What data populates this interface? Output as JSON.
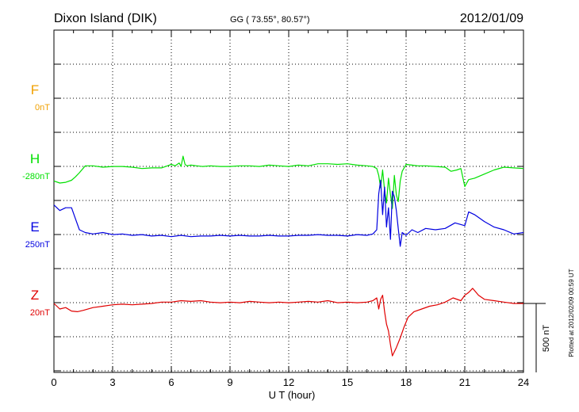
{
  "header": {
    "station": "Dixon Island (DIK)",
    "coords": "GG ( 73.55°,  80.57°)",
    "date": "2012/01/09"
  },
  "footer": {
    "xlabel": "U T (hour)",
    "plotted": "Plotted at 2012/02/09 00:59 UT",
    "scale_label": "500 nT"
  },
  "chart_data": {
    "type": "line",
    "title": "Dixon Island (DIK)",
    "xlabel": "U T (hour)",
    "ylabel": "",
    "xlim": [
      0,
      24
    ],
    "x_ticks": [
      "0",
      "3",
      "6",
      "9",
      "12",
      "15",
      "18",
      "21",
      "24"
    ],
    "grid": true,
    "scale_bar_nT": 500,
    "series": [
      {
        "name": "F",
        "baseline": "0nT",
        "color": "#f0a000",
        "x": [],
        "y": []
      },
      {
        "name": "H",
        "baseline": "-280nT",
        "color": "#00e000",
        "x": [
          0,
          0.3,
          0.6,
          0.9,
          1.1,
          1.3,
          1.6,
          2.0,
          2.5,
          3.0,
          3.5,
          4.0,
          4.5,
          5.0,
          5.5,
          5.8,
          6.0,
          6.2,
          6.4,
          6.5,
          6.6,
          6.7,
          6.8,
          7.0,
          7.3,
          7.6,
          8.0,
          8.5,
          9.0,
          9.5,
          10.0,
          10.5,
          11.0,
          11.5,
          12.0,
          12.5,
          13.0,
          13.5,
          14.0,
          14.5,
          15.0,
          15.5,
          16.0,
          16.3,
          16.5,
          16.6,
          16.7,
          16.8,
          16.9,
          17.0,
          17.1,
          17.2,
          17.3,
          17.4,
          17.5,
          17.6,
          17.7,
          17.8,
          18.0,
          18.3,
          18.6,
          19.0,
          19.5,
          20.0,
          20.3,
          20.6,
          20.8,
          21.0,
          21.2,
          21.5,
          22.0,
          22.5,
          23.0,
          23.5,
          24.0
        ],
        "y": [
          -100,
          -115,
          -110,
          -95,
          -70,
          -40,
          10,
          10,
          0,
          5,
          5,
          0,
          -10,
          -5,
          -5,
          10,
          20,
          10,
          30,
          5,
          80,
          20,
          10,
          15,
          10,
          5,
          10,
          5,
          5,
          10,
          10,
          5,
          15,
          10,
          5,
          15,
          10,
          25,
          25,
          20,
          25,
          15,
          10,
          5,
          -10,
          -60,
          -150,
          -20,
          -170,
          -260,
          -80,
          -200,
          -300,
          -60,
          -200,
          -250,
          -100,
          -30,
          20,
          15,
          10,
          10,
          5,
          0,
          -30,
          -20,
          -10,
          -140,
          -90,
          -80,
          -50,
          -20,
          0,
          -5,
          -10
        ]
      },
      {
        "name": "E",
        "baseline": "250nT",
        "color": "#0000e0",
        "x": [
          0,
          0.3,
          0.6,
          0.9,
          1.1,
          1.3,
          1.6,
          2.0,
          2.5,
          3.0,
          3.5,
          4.0,
          4.5,
          5.0,
          5.5,
          6.0,
          6.5,
          7.0,
          7.5,
          8.0,
          8.5,
          9.0,
          9.5,
          10.0,
          10.5,
          11.0,
          11.5,
          12.0,
          12.5,
          13.0,
          13.5,
          14.0,
          14.5,
          15.0,
          15.5,
          16.0,
          16.3,
          16.5,
          16.6,
          16.7,
          16.8,
          16.9,
          17.0,
          17.1,
          17.2,
          17.3,
          17.4,
          17.5,
          17.6,
          17.7,
          17.8,
          18.0,
          18.3,
          18.6,
          19.0,
          19.5,
          20.0,
          20.5,
          21.0,
          21.2,
          21.5,
          22.0,
          22.5,
          23.0,
          23.5,
          24.0
        ],
        "y": [
          220,
          180,
          200,
          200,
          120,
          40,
          20,
          10,
          20,
          5,
          10,
          0,
          5,
          -5,
          0,
          -10,
          0,
          -10,
          -5,
          -5,
          0,
          -5,
          0,
          -5,
          -5,
          0,
          -5,
          -5,
          0,
          0,
          5,
          0,
          0,
          -5,
          5,
          0,
          10,
          40,
          300,
          400,
          150,
          350,
          60,
          200,
          -30,
          320,
          280,
          180,
          50,
          -80,
          20,
          0,
          40,
          20,
          50,
          40,
          50,
          90,
          70,
          170,
          150,
          100,
          60,
          40,
          10,
          20
        ]
      },
      {
        "name": "Z",
        "baseline": "20nT",
        "color": "#e00000",
        "x": [
          0,
          0.3,
          0.6,
          0.9,
          1.2,
          1.5,
          2.0,
          2.5,
          3.0,
          3.5,
          4.0,
          4.5,
          5.0,
          5.5,
          6.0,
          6.5,
          7.0,
          7.5,
          8.0,
          8.5,
          9.0,
          9.5,
          10.0,
          10.5,
          11.0,
          11.5,
          12.0,
          12.5,
          13.0,
          13.5,
          14.0,
          14.5,
          15.0,
          15.5,
          16.0,
          16.3,
          16.5,
          16.6,
          16.7,
          16.8,
          16.9,
          17.0,
          17.1,
          17.2,
          17.3,
          17.5,
          17.7,
          17.9,
          18.1,
          18.4,
          18.8,
          19.2,
          19.6,
          20.0,
          20.4,
          20.8,
          21.0,
          21.2,
          21.4,
          21.7,
          22.0,
          22.5,
          23.0,
          23.5,
          24.0
        ],
        "y": [
          0,
          -40,
          -30,
          -55,
          -60,
          -50,
          -30,
          -20,
          -10,
          -5,
          -10,
          -5,
          0,
          10,
          10,
          20,
          15,
          20,
          10,
          5,
          10,
          5,
          15,
          10,
          5,
          10,
          5,
          10,
          15,
          10,
          20,
          5,
          10,
          5,
          10,
          20,
          40,
          -40,
          30,
          60,
          -60,
          -150,
          -200,
          -300,
          -380,
          -320,
          -250,
          -170,
          -100,
          -60,
          -40,
          -20,
          -10,
          10,
          40,
          20,
          60,
          80,
          110,
          60,
          30,
          20,
          10,
          0,
          0
        ]
      }
    ]
  }
}
